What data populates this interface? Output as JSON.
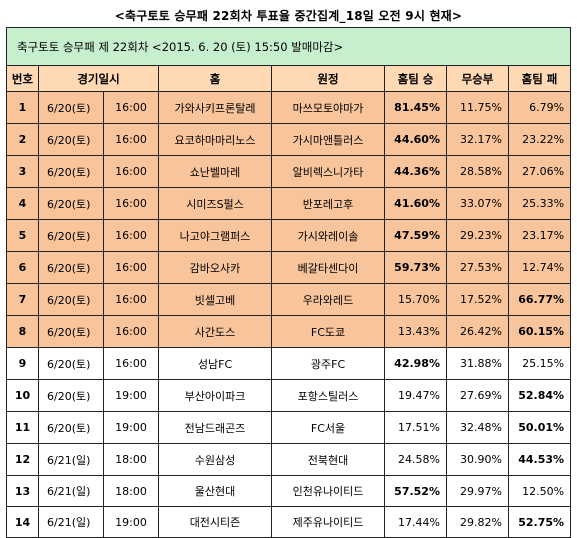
{
  "page_title": "<축구토토 승무패 22회차 투표율 중간집계_18일 오전 9시 현재>",
  "subtitle": "축구토토 승무패 제 22회차 <2015. 6. 20 (토) 15:50 발매마감>",
  "headers": {
    "no": "번호",
    "datetime": "경기일시",
    "home": "홈",
    "away": "원정",
    "home_win": "홈팀 승",
    "draw": "무승부",
    "home_loss": "홈팀 패"
  },
  "rows": [
    {
      "no": "1",
      "date": "6/20(토)",
      "time": "16:00",
      "home": "가와사키프론탈레",
      "away": "마쓰모토야마가",
      "win": "81.45%",
      "draw": "11.75%",
      "loss": "6.79%"
    },
    {
      "no": "2",
      "date": "6/20(토)",
      "time": "16:00",
      "home": "요코하마마리노스",
      "away": "가시마앤틀러스",
      "win": "44.60%",
      "draw": "32.17%",
      "loss": "23.22%"
    },
    {
      "no": "3",
      "date": "6/20(토)",
      "time": "16:00",
      "home": "쇼난벨마레",
      "away": "알비렉스니가타",
      "win": "44.36%",
      "draw": "28.58%",
      "loss": "27.06%"
    },
    {
      "no": "4",
      "date": "6/20(토)",
      "time": "16:00",
      "home": "시미즈S펄스",
      "away": "반포레고후",
      "win": "41.60%",
      "draw": "33.07%",
      "loss": "25.33%"
    },
    {
      "no": "5",
      "date": "6/20(토)",
      "time": "16:00",
      "home": "나고야그램퍼스",
      "away": "가시와레이솔",
      "win": "47.59%",
      "draw": "29.23%",
      "loss": "23.17%"
    },
    {
      "no": "6",
      "date": "6/20(토)",
      "time": "16:00",
      "home": "감바오사카",
      "away": "베갈타센다이",
      "win": "59.73%",
      "draw": "27.53%",
      "loss": "12.74%"
    },
    {
      "no": "7",
      "date": "6/20(토)",
      "time": "16:00",
      "home": "빗셀고베",
      "away": "우라와레드",
      "win": "15.70%",
      "draw": "17.52%",
      "loss": "66.77%"
    },
    {
      "no": "8",
      "date": "6/20(토)",
      "time": "16:00",
      "home": "사간도스",
      "away": "FC도쿄",
      "win": "13.43%",
      "draw": "26.42%",
      "loss": "60.15%"
    },
    {
      "no": "9",
      "date": "6/20(토)",
      "time": "16:00",
      "home": "성남FC",
      "away": "광주FC",
      "win": "42.98%",
      "draw": "31.88%",
      "loss": "25.15%"
    },
    {
      "no": "10",
      "date": "6/20(토)",
      "time": "19:00",
      "home": "부산아이파크",
      "away": "포항스틸러스",
      "win": "19.47%",
      "draw": "27.69%",
      "loss": "52.84%"
    },
    {
      "no": "11",
      "date": "6/20(토)",
      "time": "19:00",
      "home": "전남드래곤즈",
      "away": "FC서울",
      "win": "17.51%",
      "draw": "32.48%",
      "loss": "50.01%"
    },
    {
      "no": "12",
      "date": "6/21(일)",
      "time": "18:00",
      "home": "수원삼성",
      "away": "전북현대",
      "win": "24.58%",
      "draw": "30.90%",
      "loss": "44.53%"
    },
    {
      "no": "13",
      "date": "6/21(일)",
      "time": "18:00",
      "home": "울산현대",
      "away": "인천유나이티드",
      "win": "57.52%",
      "draw": "29.97%",
      "loss": "12.50%"
    },
    {
      "no": "14",
      "date": "6/21(일)",
      "time": "19:00",
      "home": "대전시티즌",
      "away": "제주유나이티드",
      "win": "17.44%",
      "draw": "29.82%",
      "loss": "52.75%"
    }
  ],
  "colors": {
    "subtitle_bg": "#c6efce",
    "header_bg": "#ffd9b3",
    "highlight_row_bg": "#f8c49b",
    "plain_row_bg": "#ffffff",
    "border": "#222222"
  }
}
